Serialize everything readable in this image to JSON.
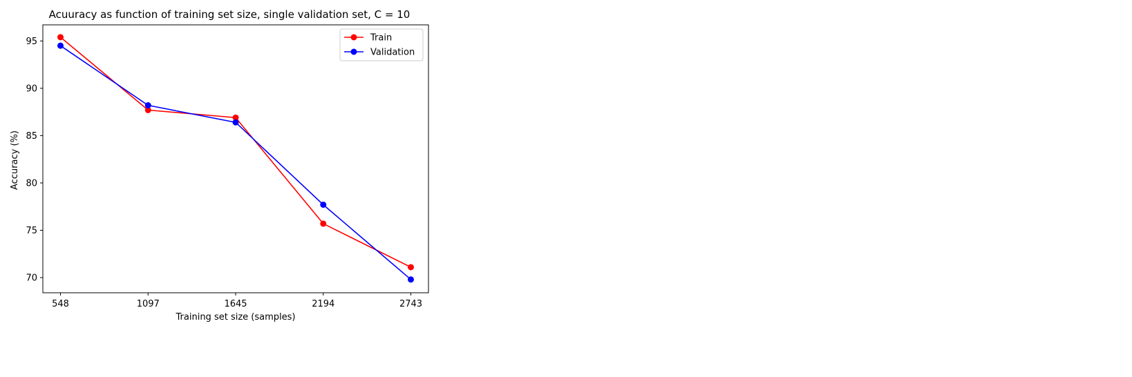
{
  "chart_data": {
    "type": "line",
    "title": "Acuuracy as function of training set size, single validation set, C = 10",
    "xlabel": "Training set size (samples)",
    "ylabel": "Accuracy (%)",
    "x": [
      548,
      1097,
      1645,
      2194,
      2743
    ],
    "xticks": [
      "548",
      "1097",
      "1645",
      "2194",
      "2743"
    ],
    "yticks": [
      70,
      75,
      80,
      85,
      90,
      95
    ],
    "ylim": [
      68.4,
      96.7
    ],
    "grid": false,
    "legend_position": "top-right",
    "series": [
      {
        "name": "Train",
        "color": "#ff0000",
        "values": [
          95.4,
          87.7,
          86.9,
          75.7,
          71.1
        ]
      },
      {
        "name": "Validation",
        "color": "#0000ff",
        "values": [
          94.5,
          88.2,
          86.4,
          77.7,
          69.8
        ]
      }
    ]
  }
}
